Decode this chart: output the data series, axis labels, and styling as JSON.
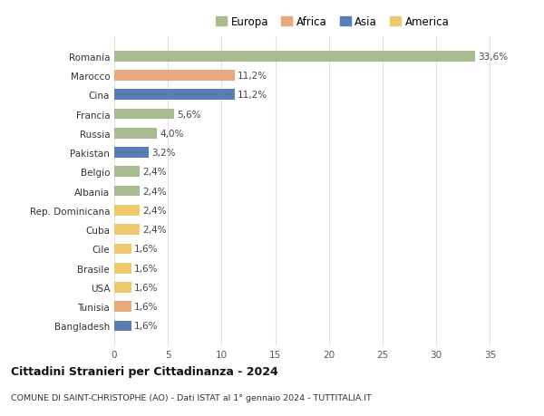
{
  "categories": [
    "Romania",
    "Marocco",
    "Cina",
    "Francia",
    "Russia",
    "Pakistan",
    "Belgio",
    "Albania",
    "Rep. Dominicana",
    "Cuba",
    "Cile",
    "Brasile",
    "USA",
    "Tunisia",
    "Bangladesh"
  ],
  "values": [
    33.6,
    11.2,
    11.2,
    5.6,
    4.0,
    3.2,
    2.4,
    2.4,
    2.4,
    2.4,
    1.6,
    1.6,
    1.6,
    1.6,
    1.6
  ],
  "labels": [
    "33,6%",
    "11,2%",
    "11,2%",
    "5,6%",
    "4,0%",
    "3,2%",
    "2,4%",
    "2,4%",
    "2,4%",
    "2,4%",
    "1,6%",
    "1,6%",
    "1,6%",
    "1,6%",
    "1,6%"
  ],
  "colors": [
    "#a8bc8f",
    "#e8a87c",
    "#5b7db5",
    "#a8bc8f",
    "#a8bc8f",
    "#5b7db5",
    "#a8bc8f",
    "#a8bc8f",
    "#f0c96e",
    "#f0c96e",
    "#f0c96e",
    "#f0c96e",
    "#f0c96e",
    "#e8a87c",
    "#5b7db5"
  ],
  "legend_labels": [
    "Europa",
    "Africa",
    "Asia",
    "America"
  ],
  "legend_colors": [
    "#a8bc8f",
    "#e8a87c",
    "#5b7db5",
    "#f0c96e"
  ],
  "title": "Cittadini Stranieri per Cittadinanza - 2024",
  "subtitle": "COMUNE DI SAINT-CHRISTOPHE (AO) - Dati ISTAT al 1° gennaio 2024 - TUTTITALIA.IT",
  "xlim": [
    0,
    37
  ],
  "xticks": [
    0,
    5,
    10,
    15,
    20,
    25,
    30,
    35
  ],
  "background_color": "#ffffff",
  "grid_color": "#e0e0e0"
}
